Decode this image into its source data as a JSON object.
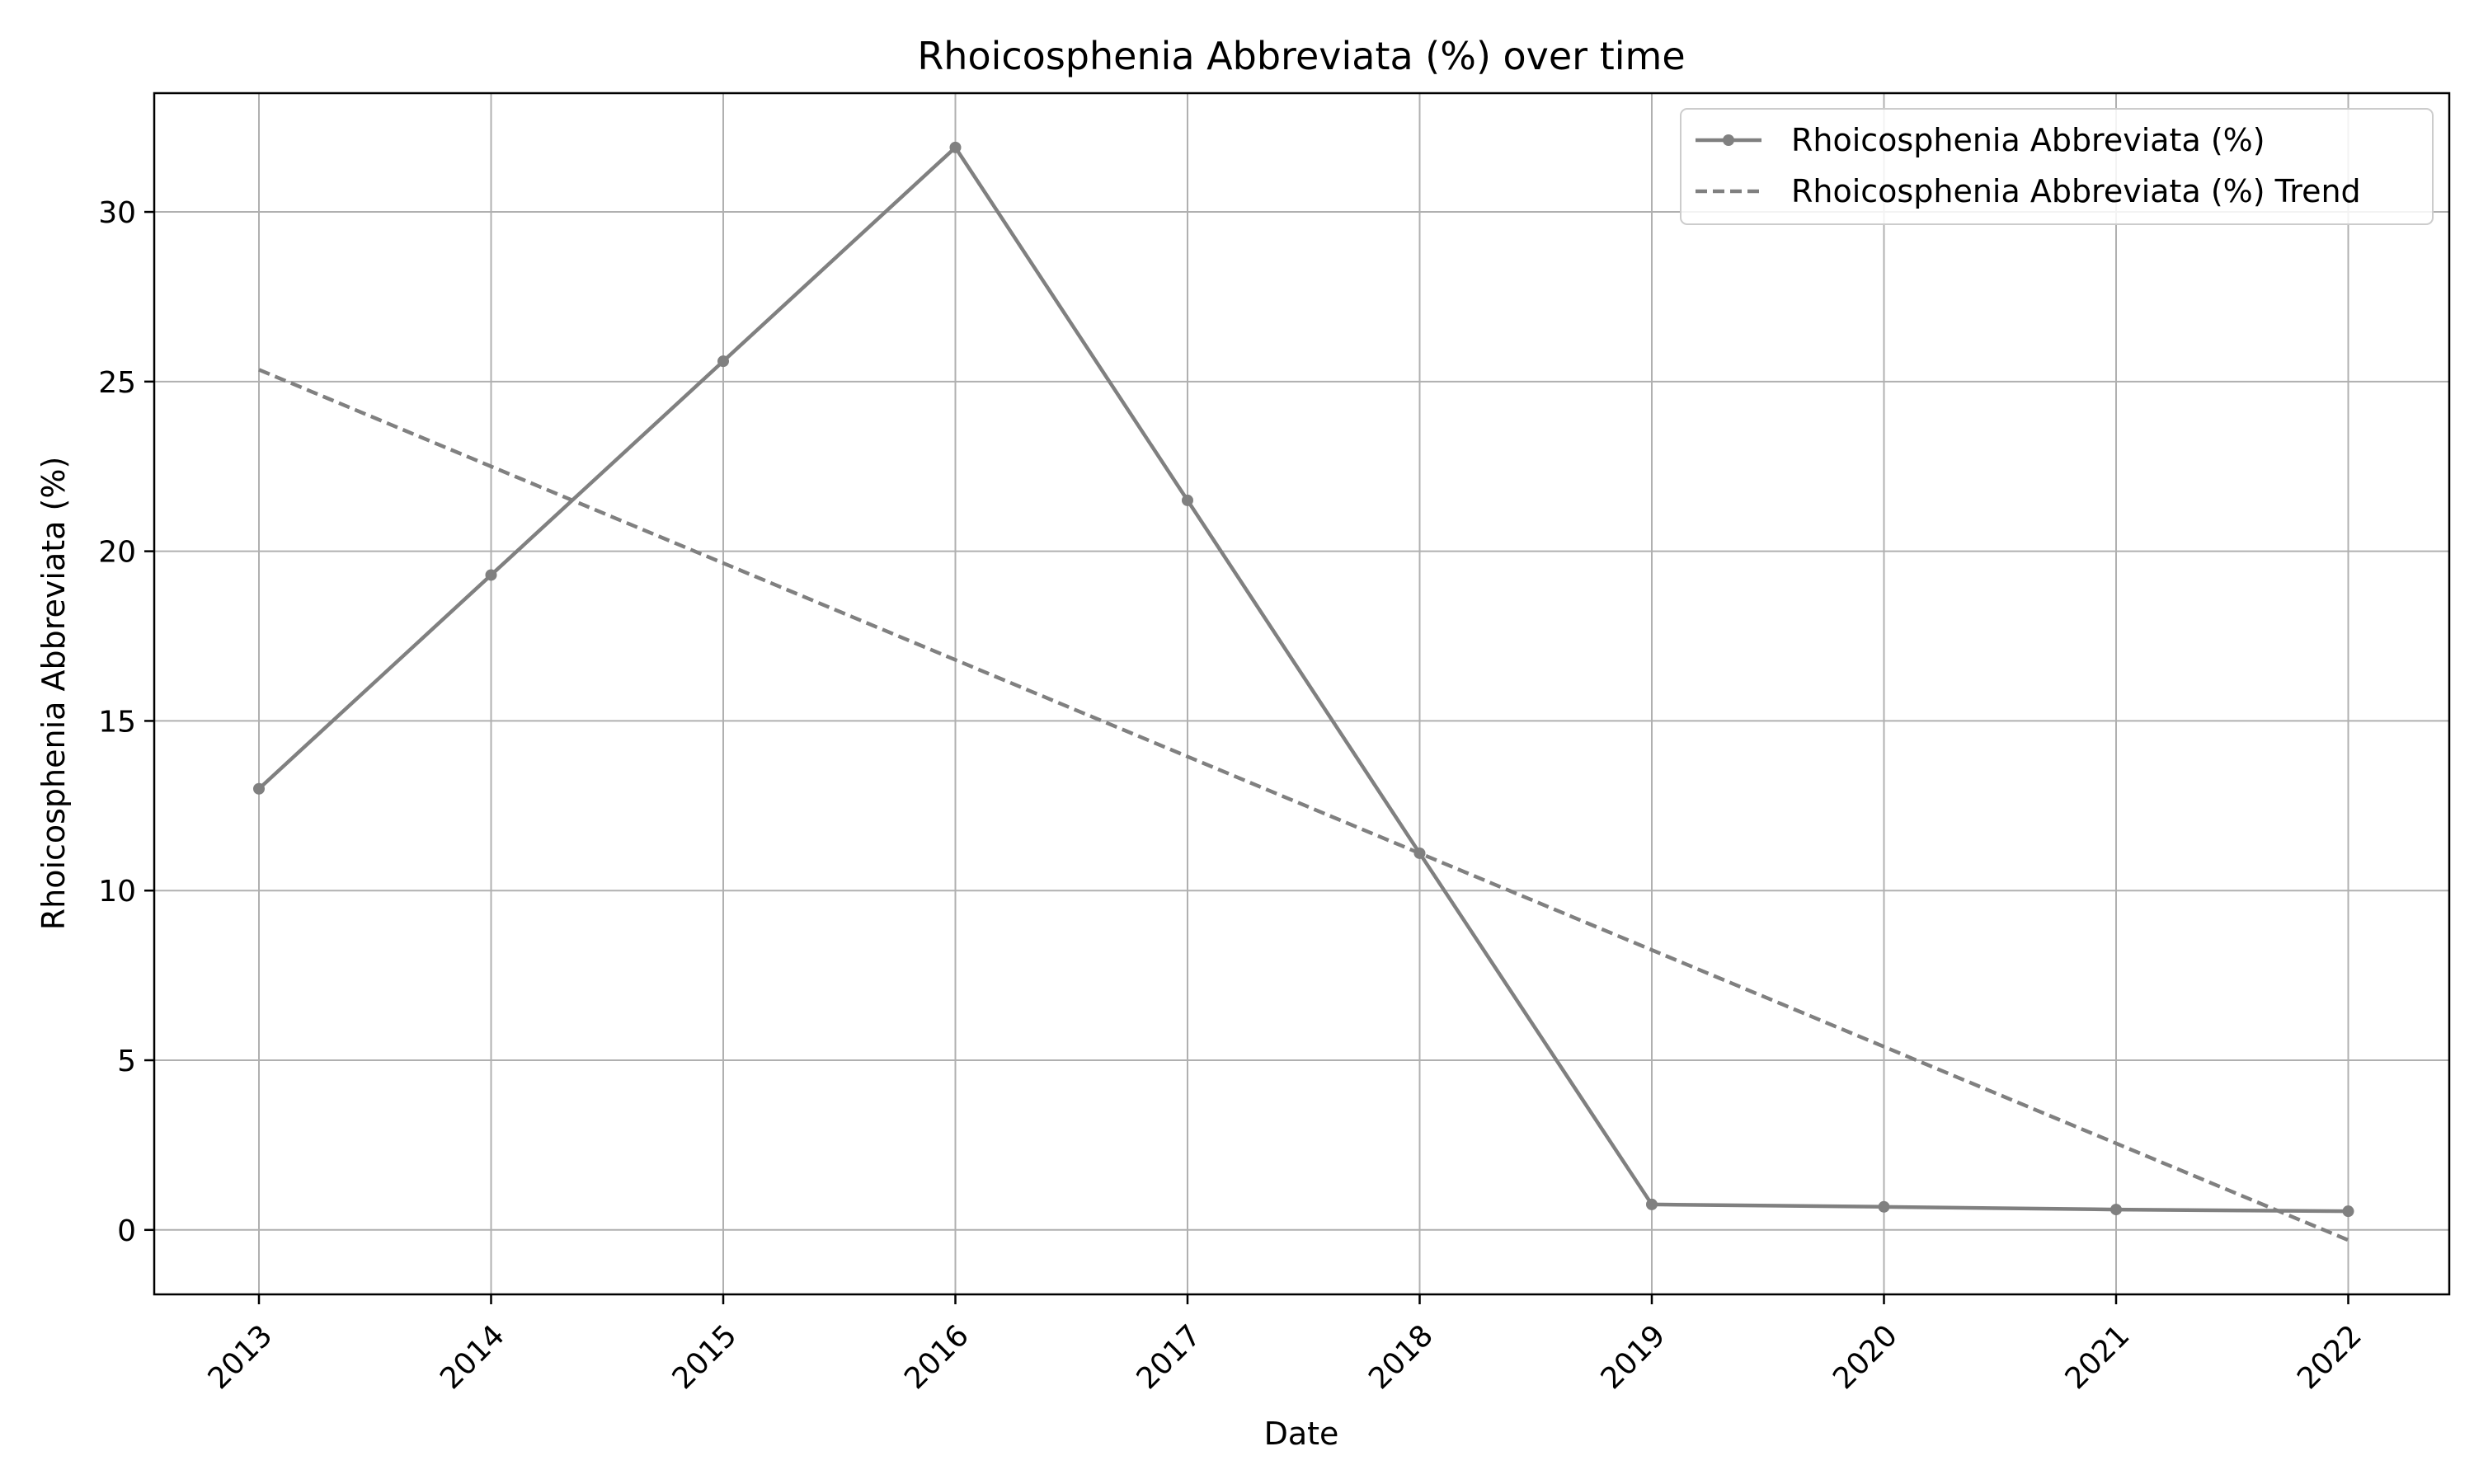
{
  "chart_data": {
    "type": "line",
    "title": "Rhoicosphenia Abbreviata (%) over time",
    "xlabel": "Date",
    "ylabel": "Rhoicosphenia Abbreviata (%)",
    "categories": [
      "2013",
      "2014",
      "2015",
      "2016",
      "2017",
      "2018",
      "2019",
      "2020",
      "2021",
      "2022"
    ],
    "series": [
      {
        "name": "Rhoicosphenia Abbreviata (%)",
        "style": "solid-with-markers",
        "color": "#808080",
        "values": [
          13.0,
          19.3,
          25.6,
          31.9,
          21.5,
          11.1,
          0.75,
          0.68,
          0.6,
          0.55
        ]
      },
      {
        "name": "Rhoicosphenia Abbreviata (%) Trend",
        "style": "dashed",
        "color": "#808080",
        "values": [
          25.35,
          22.5,
          19.65,
          16.8,
          13.95,
          11.1,
          8.25,
          5.4,
          2.55,
          -0.3
        ]
      }
    ],
    "ylim": [
      -1.9,
      33.5
    ],
    "yticks": [
      0,
      5,
      10,
      15,
      20,
      25,
      30
    ],
    "grid": true,
    "legend_position": "top-right"
  }
}
